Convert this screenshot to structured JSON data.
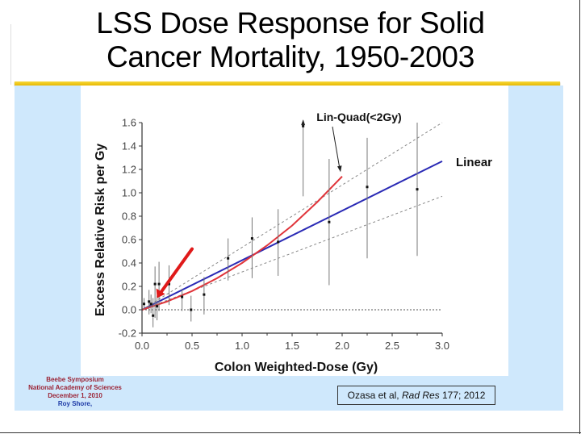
{
  "slide": {
    "title_line1": "LSS Dose Response for Solid",
    "title_line2": "Cancer Mortality, 1950-2003",
    "credit": {
      "line1": "Beebe Symposium",
      "line2": "National Academy of Sciences",
      "line3": "December 1, 2010",
      "line4": "Roy Shore,"
    },
    "citation": {
      "authors": "Ozasa et al, ",
      "journal": "Rad Res",
      "volume": " 177; 2012"
    },
    "colors": {
      "accent_rule": "#f2c818",
      "panel": "#cfe8fc",
      "linear_fit": "#2a2ab5",
      "linquad_fit": "#e0343a",
      "highlight_arrow": "#e01a1a"
    }
  },
  "chart_data": {
    "type": "scatter",
    "title": "",
    "xlabel": "Colon Weighted-Dose (Gy)",
    "ylabel": "Excess Relative Risk per Gy",
    "xlim": [
      0.0,
      3.0
    ],
    "ylim": [
      -0.2,
      1.6
    ],
    "xticks": [
      "0.0",
      "0.5",
      "1.0",
      "1.5",
      "2.0",
      "2.5",
      "3.0"
    ],
    "yticks": [
      "-0.2",
      "0.0",
      "0.2",
      "0.4",
      "0.6",
      "0.8",
      "1.0",
      "1.2",
      "1.4",
      "1.6"
    ],
    "grid": false,
    "reference_line_y": 0.0,
    "points": [
      {
        "x": 0.02,
        "y": 0.05,
        "lo": 0.0,
        "hi": 0.1
      },
      {
        "x": 0.07,
        "y": 0.07,
        "lo": -0.04,
        "hi": 0.17
      },
      {
        "x": 0.09,
        "y": 0.05,
        "lo": -0.03,
        "hi": 0.13
      },
      {
        "x": 0.11,
        "y": -0.05,
        "lo": -0.15,
        "hi": 0.1
      },
      {
        "x": 0.13,
        "y": 0.22,
        "lo": -0.07,
        "hi": 0.37
      },
      {
        "x": 0.15,
        "y": 0.03,
        "lo": -0.09,
        "hi": 0.12
      },
      {
        "x": 0.17,
        "y": 0.22,
        "lo": -0.01,
        "hi": 0.41
      },
      {
        "x": 0.27,
        "y": 0.22,
        "lo": 0.04,
        "hi": 0.38
      },
      {
        "x": 0.4,
        "y": 0.11,
        "lo": -0.01,
        "hi": 0.18
      },
      {
        "x": 0.49,
        "y": 0.0,
        "lo": -0.1,
        "hi": 0.12
      },
      {
        "x": 0.62,
        "y": 0.13,
        "lo": -0.04,
        "hi": 0.28
      },
      {
        "x": 0.86,
        "y": 0.44,
        "lo": 0.25,
        "hi": 0.61
      },
      {
        "x": 1.1,
        "y": 0.61,
        "lo": 0.27,
        "hi": 0.79
      },
      {
        "x": 1.36,
        "y": 0.58,
        "lo": 0.29,
        "hi": 0.86
      },
      {
        "x": 1.61,
        "y": 1.57,
        "lo": 0.97,
        "hi": 1.62,
        "arrow_up": true
      },
      {
        "x": 1.87,
        "y": 0.75,
        "lo": 0.21,
        "hi": 1.29
      },
      {
        "x": 2.25,
        "y": 1.05,
        "lo": 0.44,
        "hi": 1.47
      },
      {
        "x": 2.75,
        "y": 1.03,
        "lo": 0.46,
        "hi": 1.6
      }
    ],
    "series": [
      {
        "name": "Linear",
        "style": "solid",
        "color": "#2a2ab5",
        "x": [
          0.0,
          3.0
        ],
        "y": [
          0.0,
          1.27
        ]
      },
      {
        "name": "Linear CI upper",
        "style": "dashed",
        "color": "#888888",
        "x": [
          0.0,
          3.0
        ],
        "y": [
          0.0,
          1.6
        ]
      },
      {
        "name": "Linear CI lower",
        "style": "dashed",
        "color": "#888888",
        "x": [
          0.0,
          3.0
        ],
        "y": [
          0.0,
          0.97
        ]
      },
      {
        "name": "Lin-Quad(<2Gy)",
        "style": "solid",
        "color": "#e0343a",
        "x": [
          0.0,
          0.25,
          0.5,
          0.75,
          1.0,
          1.25,
          1.5,
          1.75,
          2.0
        ],
        "y": [
          0.0,
          0.07,
          0.16,
          0.27,
          0.4,
          0.55,
          0.72,
          0.92,
          1.14
        ]
      }
    ],
    "annotations": [
      {
        "text": "Lin-Quad(<2Gy)",
        "points_to": {
          "x": 2.0,
          "y": 1.15
        }
      },
      {
        "text": "Linear",
        "near": {
          "x": 3.0,
          "y": 1.27
        }
      },
      {
        "text": "",
        "type": "red-arrow",
        "points_to": {
          "x": 0.15,
          "y": 0.1
        },
        "from": {
          "x": 0.5,
          "y": 0.52
        }
      }
    ]
  }
}
